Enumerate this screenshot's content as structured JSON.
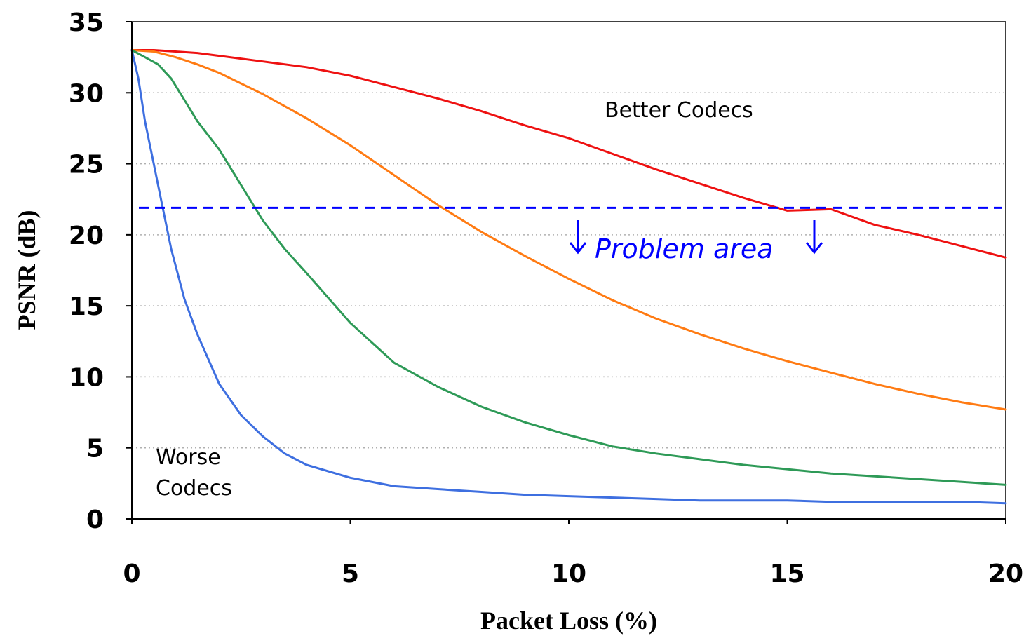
{
  "chart_data": {
    "type": "line",
    "xlabel": "Packet Loss (%)",
    "ylabel": "PSNR (dB)",
    "xlim": [
      0,
      20
    ],
    "ylim": [
      0,
      35
    ],
    "xticks": [
      "0",
      "5",
      "10",
      "15",
      "20"
    ],
    "yticks": [
      "0",
      "5",
      "10",
      "15",
      "20",
      "25",
      "30",
      "35"
    ],
    "grid": "horizontal dotted",
    "series": [
      {
        "color": "#ee1111",
        "x": [
          0,
          0.5,
          1,
          1.5,
          2,
          3,
          4,
          5,
          6,
          7,
          8,
          9,
          10,
          11,
          12,
          13,
          14,
          15,
          16,
          17,
          18,
          19,
          20
        ],
        "y": [
          33,
          33,
          32.9,
          32.8,
          32.6,
          32.2,
          31.8,
          31.2,
          30.4,
          29.6,
          28.7,
          27.7,
          26.8,
          25.7,
          24.6,
          23.6,
          22.6,
          21.7,
          21.8,
          20.7,
          20.0,
          19.2,
          18.4
        ]
      },
      {
        "color": "#ff7b13",
        "x": [
          0,
          0.5,
          1,
          1.5,
          2,
          3,
          4,
          5,
          6,
          7,
          8,
          9,
          10,
          11,
          12,
          13,
          14,
          15,
          16,
          17,
          18,
          19,
          20
        ],
        "y": [
          33,
          32.9,
          32.5,
          32.0,
          31.4,
          29.9,
          28.2,
          26.3,
          24.2,
          22.1,
          20.2,
          18.5,
          16.9,
          15.4,
          14.1,
          13.0,
          12.0,
          11.1,
          10.3,
          9.5,
          8.8,
          8.2,
          7.7
        ]
      },
      {
        "color": "#2e9a57",
        "x": [
          0,
          0.3,
          0.6,
          0.9,
          1.2,
          1.5,
          2,
          2.5,
          3,
          3.5,
          4,
          5,
          6,
          7,
          8,
          9,
          10,
          11,
          12,
          13,
          14,
          15,
          16,
          17,
          18,
          19,
          20
        ],
        "y": [
          33,
          32.5,
          32.0,
          31.0,
          29.5,
          28.0,
          26.0,
          23.5,
          21.0,
          19.0,
          17.3,
          13.8,
          11.0,
          9.3,
          7.9,
          6.8,
          5.9,
          5.1,
          4.6,
          4.2,
          3.8,
          3.5,
          3.2,
          3.0,
          2.8,
          2.6,
          2.4
        ]
      },
      {
        "color": "#3e6fe0",
        "x": [
          0,
          0.15,
          0.3,
          0.5,
          0.7,
          0.9,
          1.2,
          1.5,
          2,
          2.5,
          3,
          3.5,
          4,
          5,
          6,
          7,
          8,
          9,
          10,
          12,
          13,
          14,
          15,
          16,
          17,
          18,
          19,
          20
        ],
        "y": [
          33,
          31.0,
          28.0,
          25.0,
          22.0,
          19.0,
          15.5,
          13.0,
          9.5,
          7.3,
          5.8,
          4.6,
          3.8,
          2.9,
          2.3,
          2.1,
          1.9,
          1.7,
          1.6,
          1.4,
          1.3,
          1.3,
          1.3,
          1.2,
          1.2,
          1.2,
          1.2,
          1.1
        ]
      }
    ],
    "threshold": {
      "y": 21.9,
      "color": "#0000ff",
      "style": "dashed"
    },
    "annotations": {
      "better": "Better Codecs",
      "worse_line1": "Worse",
      "worse_line2": "Codecs",
      "problem": "Problem area"
    }
  }
}
